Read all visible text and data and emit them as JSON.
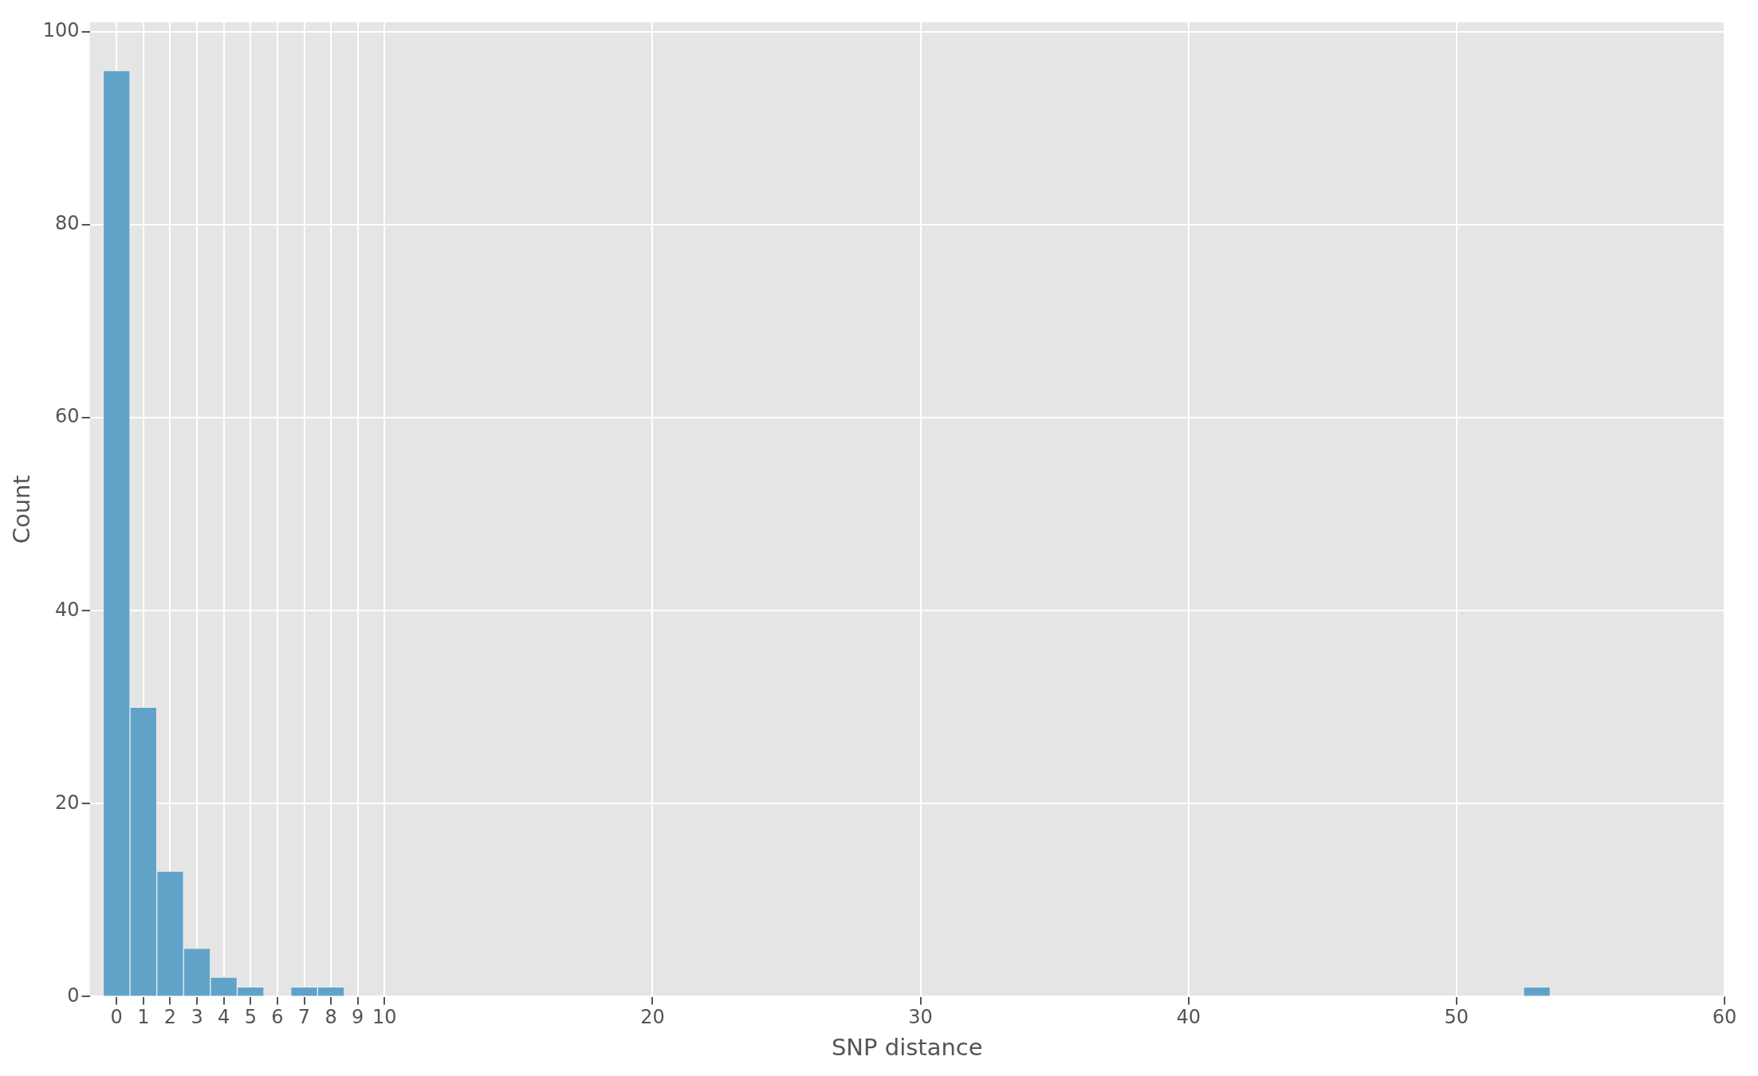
{
  "chart_data": {
    "type": "histogram",
    "xlabel": "SNP distance",
    "ylabel": "Count",
    "bins": [
      -0.5,
      0.5,
      1.5,
      2.5,
      3.5,
      4.5,
      5.5,
      6.5,
      7.5,
      8.5,
      9.5,
      10.5,
      11.5,
      12.5,
      13.5,
      14.5,
      15.5,
      16.5,
      17.5,
      18.5,
      19.5,
      20.5,
      21.5,
      22.5,
      23.5,
      24.5,
      25.5,
      26.5,
      27.5,
      28.5,
      29.5,
      30.5,
      31.5,
      32.5,
      33.5,
      34.5,
      35.5,
      36.5,
      37.5,
      38.5,
      39.5,
      40.5,
      41.5,
      42.5,
      43.5,
      44.5,
      45.5,
      46.5,
      47.5,
      48.5,
      49.5,
      50.5,
      51.5,
      52.5,
      53.5
    ],
    "values": [
      96,
      30,
      13,
      5,
      2,
      1,
      0,
      1,
      1,
      0,
      0,
      0,
      0,
      0,
      0,
      0,
      0,
      0,
      0,
      0,
      0,
      0,
      0,
      0,
      0,
      0,
      0,
      0,
      0,
      0,
      0,
      0,
      0,
      0,
      0,
      0,
      0,
      0,
      0,
      0,
      0,
      0,
      0,
      0,
      0,
      0,
      0,
      0,
      0,
      0,
      0,
      0,
      0,
      1
    ],
    "color": "#61a3c8",
    "xlim": [
      -1,
      60
    ],
    "xticks": [
      0,
      1,
      2,
      3,
      4,
      5,
      6,
      7,
      8,
      9,
      10,
      20,
      30,
      40,
      50,
      60
    ],
    "ylim": [
      0,
      101
    ],
    "yticks": [
      0,
      20,
      40,
      60,
      80,
      100
    ],
    "grid": true
  }
}
